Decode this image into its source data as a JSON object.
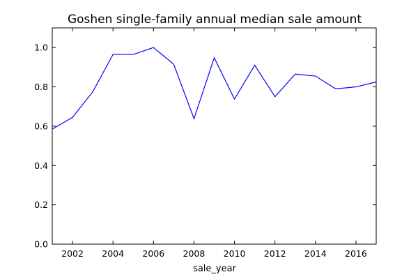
{
  "chart_data": {
    "type": "line",
    "title": "Goshen single-family annual median sale amount",
    "xlabel": "sale_year",
    "ylabel": "",
    "xlim": [
      2001,
      2017
    ],
    "ylim": [
      0.0,
      1.1
    ],
    "xticks": [
      2002,
      2004,
      2006,
      2008,
      2010,
      2012,
      2014,
      2016
    ],
    "yticks": [
      0.0,
      0.2,
      0.4,
      0.6,
      0.8,
      1.0
    ],
    "xtick_labels": [
      "2002",
      "2004",
      "2006",
      "2008",
      "2010",
      "2012",
      "2014",
      "2016"
    ],
    "ytick_labels": [
      "0.0",
      "0.2",
      "0.4",
      "0.6",
      "0.8",
      "1.0"
    ],
    "grid": false,
    "legend": "none",
    "series": [
      {
        "color": "#0000ff",
        "x": [
          2001,
          2002,
          2003,
          2004,
          2005,
          2006,
          2007,
          2008,
          2009,
          2010,
          2011,
          2012,
          2013,
          2014,
          2015,
          2016,
          2017
        ],
        "y": [
          0.585,
          0.645,
          0.775,
          0.965,
          0.965,
          1.0,
          0.915,
          0.638,
          0.948,
          0.738,
          0.91,
          0.75,
          0.865,
          0.855,
          0.79,
          0.8,
          0.825
        ]
      }
    ]
  }
}
